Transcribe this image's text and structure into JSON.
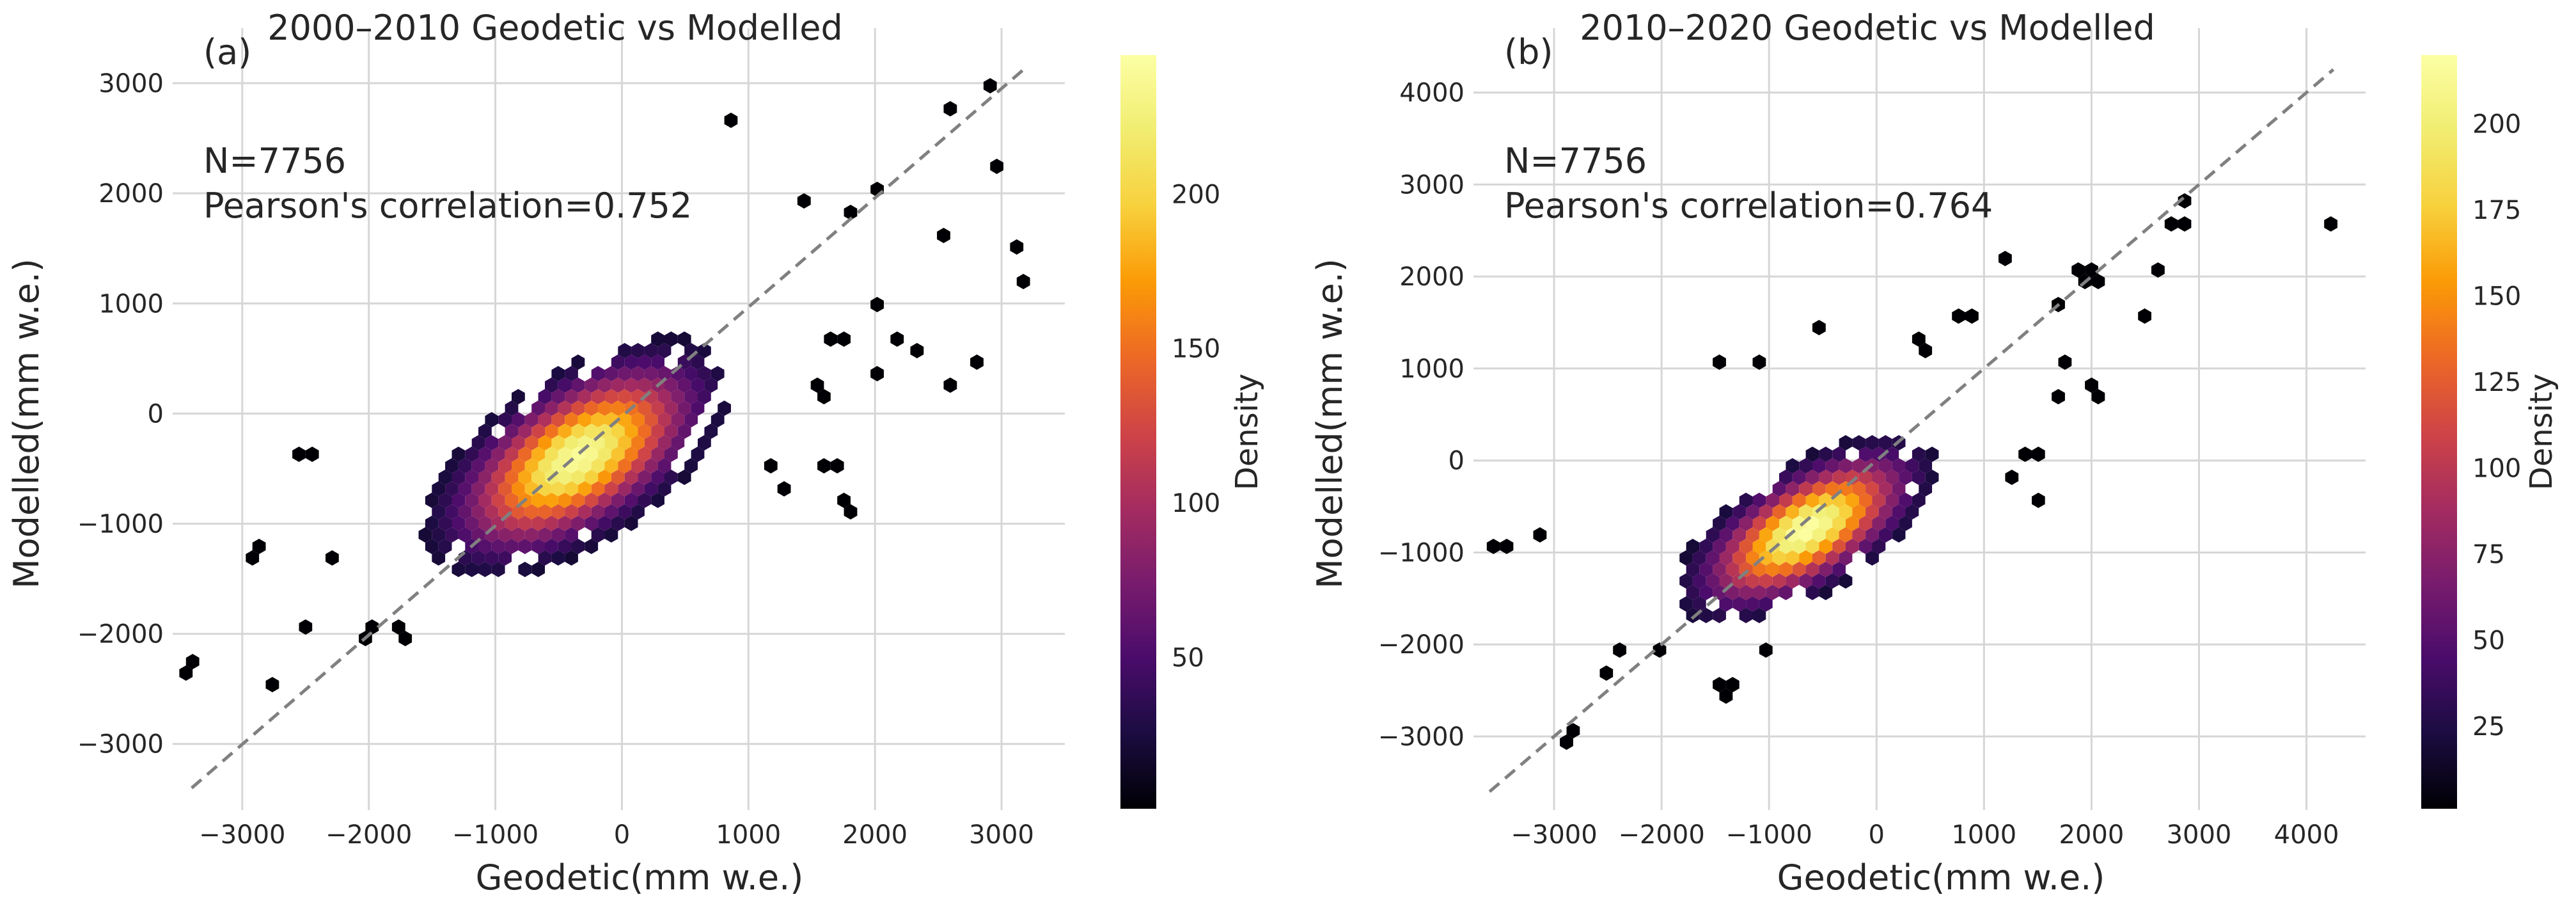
{
  "chart_data": [
    {
      "type": "hexbin",
      "panel_label": "(a)",
      "title": "2000–2010 Geodetic vs Modelled",
      "xlabel": "Geodetic(mm w.e.)",
      "ylabel": "Modelled(mm w.e.)",
      "xlim": [
        -3550,
        3500
      ],
      "ylim": [
        -3600,
        3500
      ],
      "xticks": [
        -3000,
        -2000,
        -1000,
        0,
        1000,
        2000,
        3000
      ],
      "yticks": [
        -3000,
        -2000,
        -1000,
        0,
        1000,
        2000,
        3000
      ],
      "xtick_labels": [
        "−3000",
        "−2000",
        "−1000",
        "0",
        "1000",
        "2000",
        "3000"
      ],
      "ytick_labels": [
        "−3000",
        "−2000",
        "−1000",
        "0",
        "1000",
        "2000",
        "3000"
      ],
      "annotations": [
        "N=7756",
        "Pearson's correlation=0.752"
      ],
      "grid": true,
      "reference_line": {
        "style": "dashed",
        "color": "#808080",
        "from": [
          -3400,
          -3400
        ],
        "to": [
          3200,
          3150
        ]
      },
      "density_model": {
        "center": [
          -350,
          -400
        ],
        "spread_major": 650,
        "spread_minor": 330,
        "angle_deg": 40,
        "peak": 240
      },
      "outliers": [
        [
          -3400,
          -2300
        ],
        [
          -2900,
          -1250
        ],
        [
          -2750,
          -2500
        ],
        [
          -2500,
          -1900
        ],
        [
          -2500,
          -350
        ],
        [
          -2000,
          -2000
        ],
        [
          -1750,
          -2000
        ],
        [
          900,
          2650
        ],
        [
          1450,
          1950
        ],
        [
          1800,
          1850
        ],
        [
          2000,
          2050
        ],
        [
          2550,
          2750
        ],
        [
          2900,
          2950
        ],
        [
          3000,
          2250
        ],
        [
          3100,
          1500
        ],
        [
          3200,
          1200
        ],
        [
          2850,
          500
        ],
        [
          2500,
          1600
        ],
        [
          2550,
          250
        ],
        [
          1800,
          -850
        ],
        [
          1650,
          -450
        ],
        [
          1700,
          650
        ],
        [
          1150,
          -450
        ],
        [
          1300,
          -650
        ],
        [
          2000,
          1000
        ],
        [
          2200,
          700
        ],
        [
          1550,
          200
        ],
        [
          2050,
          350
        ],
        [
          2300,
          600
        ],
        [
          -2300,
          -1300
        ]
      ],
      "colorbar": {
        "label": "Density",
        "min": 1,
        "max": 245,
        "ticks": [
          50,
          100,
          150,
          200
        ],
        "tick_labels": [
          "50",
          "100",
          "150",
          "200"
        ],
        "colormap": "inferno"
      }
    },
    {
      "type": "hexbin",
      "panel_label": "(b)",
      "title": "2010–2020 Geodetic vs Modelled",
      "xlabel": "Geodetic(mm w.e.)",
      "ylabel": "Modelled(mm w.e.)",
      "xlim": [
        -3750,
        4550
      ],
      "ylim": [
        -3800,
        4700
      ],
      "xticks": [
        -3000,
        -2000,
        -1000,
        0,
        1000,
        2000,
        3000,
        4000
      ],
      "yticks": [
        -3000,
        -2000,
        -1000,
        0,
        1000,
        2000,
        3000,
        4000
      ],
      "xtick_labels": [
        "−3000",
        "−2000",
        "−1000",
        "0",
        "1000",
        "2000",
        "3000",
        "4000"
      ],
      "ytick_labels": [
        "−3000",
        "−2000",
        "−1000",
        "0",
        "1000",
        "2000",
        "3000",
        "4000"
      ],
      "annotations": [
        "N=7756",
        "Pearson's correlation=0.764"
      ],
      "grid": true,
      "reference_line": {
        "style": "dashed",
        "color": "#808080",
        "from": [
          -3600,
          -3600
        ],
        "to": [
          4250,
          4250
        ]
      },
      "density_model": {
        "center": [
          -650,
          -750
        ],
        "spread_major": 650,
        "spread_minor": 300,
        "angle_deg": 38,
        "peak": 220
      },
      "outliers": [
        [
          -3500,
          -950
        ],
        [
          -3150,
          -850
        ],
        [
          -2850,
          -3000
        ],
        [
          -2500,
          -2300
        ],
        [
          -2400,
          -2100
        ],
        [
          -2000,
          -2100
        ],
        [
          -1400,
          -2500
        ],
        [
          -1100,
          1050
        ],
        [
          -500,
          1400
        ],
        [
          400,
          1250
        ],
        [
          750,
          1550
        ],
        [
          1200,
          2150
        ],
        [
          1650,
          1700
        ],
        [
          1900,
          2050
        ],
        [
          2000,
          2000
        ],
        [
          2500,
          1600
        ],
        [
          2600,
          2050
        ],
        [
          2800,
          2550
        ],
        [
          2850,
          2850
        ],
        [
          4200,
          2550
        ],
        [
          1700,
          700
        ],
        [
          2000,
          850
        ],
        [
          1450,
          100
        ],
        [
          1500,
          -400
        ],
        [
          1300,
          -150
        ],
        [
          2050,
          650
        ],
        [
          1750,
          1050
        ],
        [
          900,
          1600
        ],
        [
          -1500,
          1050
        ],
        [
          -1000,
          -2100
        ]
      ],
      "colorbar": {
        "label": "Density",
        "min": 1,
        "max": 220,
        "ticks": [
          25,
          50,
          75,
          100,
          125,
          150,
          175,
          200
        ],
        "tick_labels": [
          "25",
          "50",
          "75",
          "100",
          "125",
          "150",
          "175",
          "200"
        ],
        "colormap": "inferno"
      }
    }
  ]
}
